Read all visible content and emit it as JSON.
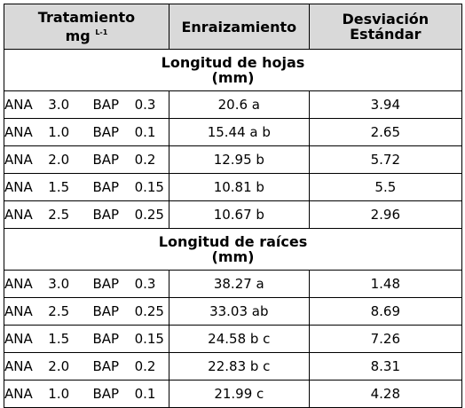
{
  "header": {
    "col1_line1": "Tratamiento",
    "col1_line2": "mg",
    "col1_sup": "L-1",
    "col2": "Enraizamiento",
    "col3_line1": "Desviación",
    "col3_line2": "Estándar"
  },
  "sections": [
    {
      "title_line1": "Longitud de hojas",
      "title_line2": "(mm)",
      "rows": [
        {
          "treatment": "ANA  3.0   BAP  0.3",
          "rooting": "20.6 a",
          "sd": "3.94"
        },
        {
          "treatment": "ANA  1.0   BAP  0.1",
          "rooting": "15.44 a b",
          "sd": "2.65"
        },
        {
          "treatment": "ANA  2.0   BAP  0.2",
          "rooting": "12.95 b",
          "sd": "5.72"
        },
        {
          "treatment": "ANA  1.5   BAP  0.15",
          "rooting": "10.81 b",
          "sd": "5.5"
        },
        {
          "treatment": "ANA  2.5   BAP  0.25",
          "rooting": "10.67 b",
          "sd": "2.96"
        }
      ]
    },
    {
      "title_line1": "Longitud de raíces",
      "title_line2": "(mm)",
      "rows": [
        {
          "treatment": "ANA  3.0   BAP  0.3",
          "rooting": "38.27 a",
          "sd": "1.48"
        },
        {
          "treatment": "ANA  2.5   BAP  0.25",
          "rooting": "33.03 ab",
          "sd": "8.69"
        },
        {
          "treatment": "ANA  1.5   BAP  0.15",
          "rooting": "24.58 b c",
          "sd": "7.26"
        },
        {
          "treatment": "ANA  2.0   BAP  0.2",
          "rooting": "22.83 b c",
          "sd": "8.31"
        },
        {
          "treatment": "ANA  1.0   BAP  0.1",
          "rooting": "21.99 c",
          "sd": "4.28"
        }
      ]
    }
  ]
}
